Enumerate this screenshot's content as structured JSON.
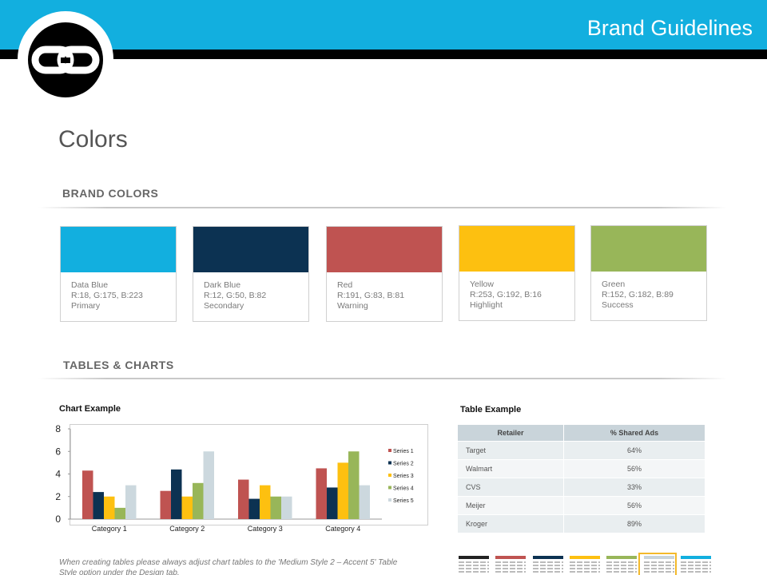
{
  "header": {
    "title": "Brand Guidelines"
  },
  "logo": {
    "icon": "chain-link-icon"
  },
  "page_title": "Colors",
  "brand_colors": {
    "heading": "BRAND COLORS",
    "swatches": [
      {
        "name": "Data Blue",
        "rgb": "R:18, G:175, B:223",
        "role": "Primary",
        "hex": "#12afdf"
      },
      {
        "name": "Dark Blue",
        "rgb": "R:12, G:50, B:82",
        "role": "Secondary",
        "hex": "#0c3252"
      },
      {
        "name": "Red",
        "rgb": "R:191, G:83, B:81",
        "role": "Warning",
        "hex": "#bf5351"
      },
      {
        "name": "Yellow",
        "rgb": "R:253, G:192, B:16",
        "role": "Highlight",
        "hex": "#fdc010"
      },
      {
        "name": "Green",
        "rgb": "R:152, G:182, B:89",
        "role": "Success",
        "hex": "#98b659"
      }
    ]
  },
  "tables_charts": {
    "heading": "TABLES & CHARTS",
    "chart_label": "Chart Example",
    "table_label": "Table Example",
    "footnote": "When creating tables please always adjust chart tables to the 'Medium Style 2 – Accent 5' Table Style option under the Design tab."
  },
  "chart_data": {
    "type": "bar",
    "categories": [
      "Category 1",
      "Category 2",
      "Category 3",
      "Category 4"
    ],
    "series": [
      {
        "name": "Series 1",
        "color": "#bf5351",
        "values": [
          4.3,
          2.5,
          3.5,
          4.5
        ]
      },
      {
        "name": "Series 2",
        "color": "#0c3252",
        "values": [
          2.4,
          4.4,
          1.8,
          2.8
        ]
      },
      {
        "name": "Series 3",
        "color": "#fdc010",
        "values": [
          2.0,
          2.0,
          3.0,
          5.0
        ]
      },
      {
        "name": "Series 4",
        "color": "#98b659",
        "values": [
          1.0,
          3.2,
          2.0,
          6.0
        ]
      },
      {
        "name": "Series 5",
        "color": "#ccd8de",
        "values": [
          3.0,
          6.0,
          2.0,
          3.0
        ]
      }
    ],
    "yticks": [
      "0",
      "2",
      "4",
      "6",
      "8"
    ],
    "ylim": [
      0,
      8
    ],
    "legend_position": "right"
  },
  "table": {
    "headers": [
      "Retailer",
      "% Shared Ads"
    ],
    "rows": [
      [
        "Target",
        "64%"
      ],
      [
        "Walmart",
        "56%"
      ],
      [
        "CVS",
        "33%"
      ],
      [
        "Meijer",
        "56%"
      ],
      [
        "Kroger",
        "89%"
      ]
    ]
  },
  "table_styles": {
    "colors": [
      "#222222",
      "#bf5351",
      "#0c3252",
      "#fdc010",
      "#98b659",
      "#c9d4da",
      "#12afdf"
    ],
    "selected_index": 5
  }
}
